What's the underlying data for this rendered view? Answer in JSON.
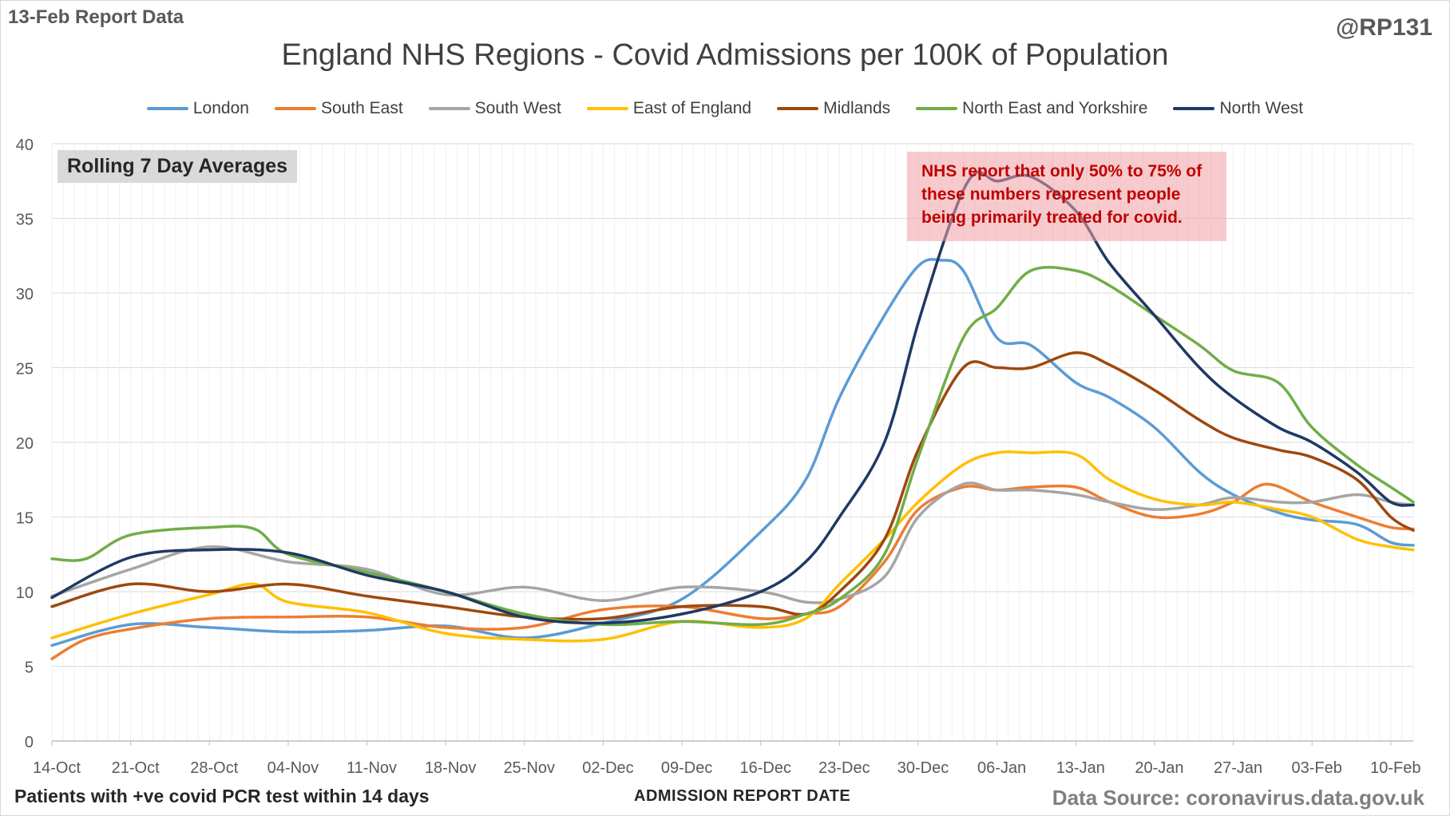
{
  "header": {
    "report_label": "13-Feb Report Data",
    "handle": "@RP131"
  },
  "footer": {
    "note": "Patients with +ve covid PCR test within 14 days",
    "source": "Data Source: coronavirus.data.gov.uk"
  },
  "chart_data": {
    "type": "line",
    "title": "England NHS Regions - Covid Admissions per 100K of Population",
    "xlabel": "ADMISSION REPORT DATE",
    "ylabel": "",
    "ylim": [
      0,
      40
    ],
    "y_ticks": [
      0,
      5,
      10,
      15,
      20,
      25,
      30,
      35,
      40
    ],
    "x_range": [
      "2021-10-14",
      "2022-02-12"
    ],
    "x_tick_labels": [
      "14-Oct",
      "21-Oct",
      "28-Oct",
      "04-Nov",
      "11-Nov",
      "18-Nov",
      "25-Nov",
      "02-Dec",
      "09-Dec",
      "16-Dec",
      "23-Dec",
      "30-Dec",
      "06-Jan",
      "13-Jan",
      "20-Jan",
      "27-Jan",
      "03-Feb",
      "10-Feb"
    ],
    "grid": true,
    "legend_position": "top",
    "annotations": [
      {
        "text": "Rolling 7 Day Averages",
        "style": "grey-box"
      },
      {
        "text": "NHS report that only 50% to 75% of these numbers represent people being primarily treated for covid.",
        "style": "pink-box"
      }
    ],
    "series": [
      {
        "name": "London",
        "color": "#5b9bd5",
        "x": [
          "2021-10-14",
          "2021-10-21",
          "2021-10-28",
          "2021-11-04",
          "2021-11-11",
          "2021-11-18",
          "2021-11-25",
          "2021-12-02",
          "2021-12-09",
          "2021-12-16",
          "2021-12-20",
          "2021-12-23",
          "2021-12-27",
          "2021-12-30",
          "2022-01-01",
          "2022-01-03",
          "2022-01-06",
          "2022-01-09",
          "2022-01-13",
          "2022-01-16",
          "2022-01-20",
          "2022-01-24",
          "2022-01-27",
          "2022-01-31",
          "2022-02-03",
          "2022-02-07",
          "2022-02-10",
          "2022-02-12"
        ],
        "y": [
          6.4,
          7.8,
          7.6,
          7.3,
          7.4,
          7.7,
          6.9,
          7.9,
          9.5,
          14.0,
          17.5,
          23.0,
          28.5,
          31.8,
          32.2,
          31.5,
          27.0,
          26.5,
          24.0,
          23.0,
          21.0,
          18.0,
          16.5,
          15.3,
          14.8,
          14.5,
          13.3,
          13.1
        ]
      },
      {
        "name": "South East",
        "color": "#ed7d31",
        "x": [
          "2021-10-14",
          "2021-10-17",
          "2021-10-21",
          "2021-10-28",
          "2021-11-04",
          "2021-11-11",
          "2021-11-18",
          "2021-11-25",
          "2021-12-02",
          "2021-12-09",
          "2021-12-16",
          "2021-12-20",
          "2021-12-23",
          "2021-12-27",
          "2021-12-30",
          "2022-01-03",
          "2022-01-06",
          "2022-01-09",
          "2022-01-13",
          "2022-01-16",
          "2022-01-20",
          "2022-01-24",
          "2022-01-27",
          "2022-01-30",
          "2022-02-03",
          "2022-02-07",
          "2022-02-10",
          "2022-02-12"
        ],
        "y": [
          5.5,
          6.8,
          7.5,
          8.2,
          8.3,
          8.3,
          7.6,
          7.6,
          8.8,
          9.0,
          8.2,
          8.5,
          9.0,
          12.0,
          15.5,
          17.0,
          16.8,
          17.0,
          17.0,
          16.0,
          15.0,
          15.2,
          16.0,
          17.2,
          16.0,
          15.0,
          14.3,
          14.2
        ]
      },
      {
        "name": "South West",
        "color": "#a5a5a5",
        "x": [
          "2021-10-14",
          "2021-10-21",
          "2021-10-28",
          "2021-11-04",
          "2021-11-11",
          "2021-11-18",
          "2021-11-25",
          "2021-12-02",
          "2021-12-09",
          "2021-12-16",
          "2021-12-20",
          "2021-12-23",
          "2021-12-27",
          "2021-12-30",
          "2022-01-03",
          "2022-01-06",
          "2022-01-09",
          "2022-01-13",
          "2022-01-16",
          "2022-01-20",
          "2022-01-24",
          "2022-01-27",
          "2022-01-31",
          "2022-02-03",
          "2022-02-07",
          "2022-02-10",
          "2022-02-12"
        ],
        "y": [
          9.7,
          11.5,
          13.0,
          12.0,
          11.5,
          9.8,
          10.3,
          9.4,
          10.3,
          10.0,
          9.3,
          9.5,
          11.0,
          15.0,
          17.2,
          16.8,
          16.8,
          16.5,
          16.0,
          15.5,
          15.8,
          16.3,
          16.0,
          16.0,
          16.5,
          16.0,
          15.8
        ]
      },
      {
        "name": "East of England",
        "color": "#ffc000",
        "x": [
          "2021-10-14",
          "2021-10-21",
          "2021-10-28",
          "2021-11-01",
          "2021-11-04",
          "2021-11-11",
          "2021-11-18",
          "2021-11-25",
          "2021-12-02",
          "2021-12-09",
          "2021-12-16",
          "2021-12-20",
          "2021-12-23",
          "2021-12-27",
          "2021-12-30",
          "2022-01-03",
          "2022-01-06",
          "2022-01-09",
          "2022-01-13",
          "2022-01-16",
          "2022-01-20",
          "2022-01-24",
          "2022-01-27",
          "2022-01-31",
          "2022-02-03",
          "2022-02-07",
          "2022-02-10",
          "2022-02-12"
        ],
        "y": [
          6.9,
          8.5,
          9.8,
          10.5,
          9.3,
          8.6,
          7.2,
          6.8,
          6.8,
          8.0,
          7.6,
          8.2,
          10.5,
          13.5,
          16.0,
          18.5,
          19.3,
          19.3,
          19.2,
          17.5,
          16.2,
          15.8,
          16.0,
          15.5,
          15.0,
          13.5,
          13.0,
          12.8
        ]
      },
      {
        "name": "Midlands",
        "color": "#9e480e",
        "x": [
          "2021-10-14",
          "2021-10-21",
          "2021-10-28",
          "2021-11-04",
          "2021-11-11",
          "2021-11-18",
          "2021-11-25",
          "2021-12-02",
          "2021-12-09",
          "2021-12-16",
          "2021-12-20",
          "2021-12-23",
          "2021-12-27",
          "2021-12-30",
          "2022-01-03",
          "2022-01-06",
          "2022-01-09",
          "2022-01-13",
          "2022-01-16",
          "2022-01-20",
          "2022-01-24",
          "2022-01-27",
          "2022-01-31",
          "2022-02-03",
          "2022-02-07",
          "2022-02-10",
          "2022-02-12"
        ],
        "y": [
          9.0,
          10.5,
          10.0,
          10.5,
          9.7,
          9.0,
          8.3,
          8.2,
          9.0,
          9.0,
          8.5,
          10.0,
          13.5,
          19.5,
          25.0,
          25.0,
          25.0,
          26.0,
          25.2,
          23.5,
          21.5,
          20.3,
          19.5,
          19.0,
          17.5,
          15.0,
          14.1
        ]
      },
      {
        "name": "North East and Yorkshire",
        "color": "#70ad47",
        "x": [
          "2021-10-14",
          "2021-10-17",
          "2021-10-21",
          "2021-10-28",
          "2021-11-01",
          "2021-11-04",
          "2021-11-11",
          "2021-11-18",
          "2021-11-25",
          "2021-12-02",
          "2021-12-09",
          "2021-12-16",
          "2021-12-20",
          "2021-12-23",
          "2021-12-27",
          "2021-12-30",
          "2022-01-03",
          "2022-01-06",
          "2022-01-09",
          "2022-01-13",
          "2022-01-16",
          "2022-01-20",
          "2022-01-24",
          "2022-01-27",
          "2022-01-31",
          "2022-02-03",
          "2022-02-07",
          "2022-02-10",
          "2022-02-12"
        ],
        "y": [
          12.2,
          12.2,
          13.8,
          14.3,
          14.2,
          12.5,
          11.3,
          10.0,
          8.5,
          7.8,
          8.0,
          7.8,
          8.5,
          9.5,
          12.5,
          19.0,
          27.0,
          29.0,
          31.5,
          31.5,
          30.5,
          28.5,
          26.5,
          24.8,
          24.0,
          21.0,
          18.5,
          17.0,
          16.0
        ]
      },
      {
        "name": "North West",
        "color": "#203864",
        "x": [
          "2021-10-14",
          "2021-10-21",
          "2021-10-28",
          "2021-11-04",
          "2021-11-11",
          "2021-11-18",
          "2021-11-25",
          "2021-12-02",
          "2021-12-09",
          "2021-12-16",
          "2021-12-20",
          "2021-12-23",
          "2021-12-27",
          "2021-12-30",
          "2022-01-02",
          "2022-01-04",
          "2022-01-06",
          "2022-01-09",
          "2022-01-13",
          "2022-01-16",
          "2022-01-20",
          "2022-01-24",
          "2022-01-27",
          "2022-01-31",
          "2022-02-03",
          "2022-02-07",
          "2022-02-10",
          "2022-02-12"
        ],
        "y": [
          9.6,
          12.3,
          12.8,
          12.6,
          11.1,
          10.0,
          8.3,
          7.9,
          8.5,
          10.0,
          12.0,
          15.0,
          20.0,
          28.0,
          35.0,
          38.0,
          37.5,
          37.8,
          35.5,
          32.0,
          28.5,
          25.0,
          23.0,
          21.0,
          20.0,
          18.0,
          16.0,
          15.8
        ]
      }
    ]
  }
}
